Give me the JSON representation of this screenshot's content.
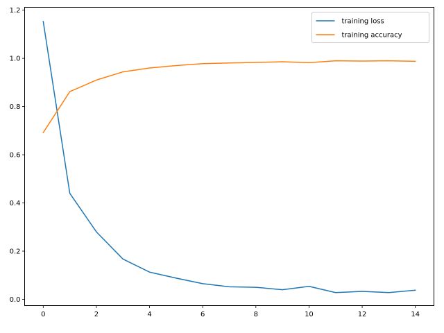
{
  "chart_data": {
    "type": "line",
    "title": "",
    "xlabel": "",
    "ylabel": "",
    "x": [
      0,
      1,
      2,
      3,
      4,
      5,
      6,
      7,
      8,
      9,
      10,
      11,
      12,
      13,
      14
    ],
    "xlim": [
      -0.7,
      14.7
    ],
    "ylim": [
      -0.026,
      1.212
    ],
    "xticks": [
      0,
      2,
      4,
      6,
      8,
      10,
      12,
      14
    ],
    "xtick_labels": [
      "0",
      "2",
      "4",
      "6",
      "8",
      "10",
      "12",
      "14"
    ],
    "yticks": [
      0.0,
      0.2,
      0.4,
      0.6,
      0.8,
      1.0,
      1.2
    ],
    "ytick_labels": [
      "0.0",
      "0.2",
      "0.4",
      "0.6",
      "0.8",
      "1.0",
      "1.2"
    ],
    "grid": false,
    "legend_position": "top-right",
    "series": [
      {
        "name": "training loss",
        "color": "#1f77b4",
        "values": [
          1.153,
          0.44,
          0.28,
          0.167,
          0.113,
          0.088,
          0.065,
          0.052,
          0.05,
          0.04,
          0.054,
          0.028,
          0.033,
          0.028,
          0.038
        ]
      },
      {
        "name": "training accuracy",
        "color": "#ff7f0e",
        "values": [
          0.692,
          0.862,
          0.91,
          0.944,
          0.96,
          0.97,
          0.978,
          0.981,
          0.983,
          0.986,
          0.982,
          0.99,
          0.989,
          0.99,
          0.988
        ]
      }
    ]
  }
}
